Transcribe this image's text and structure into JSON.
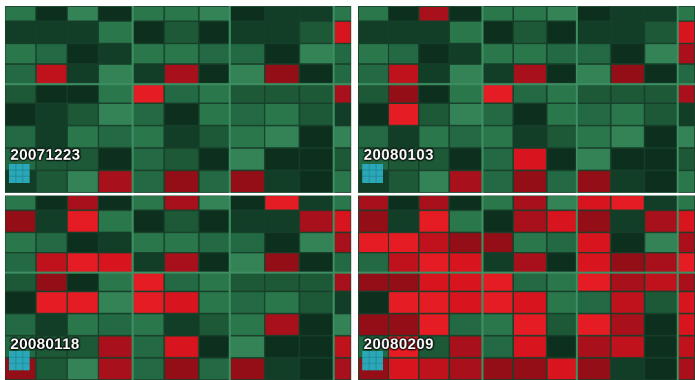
{
  "panels": [
    {
      "label": "20071223"
    },
    {
      "label": "20080103"
    },
    {
      "label": "20080118"
    },
    {
      "label": "20080209"
    }
  ]
}
